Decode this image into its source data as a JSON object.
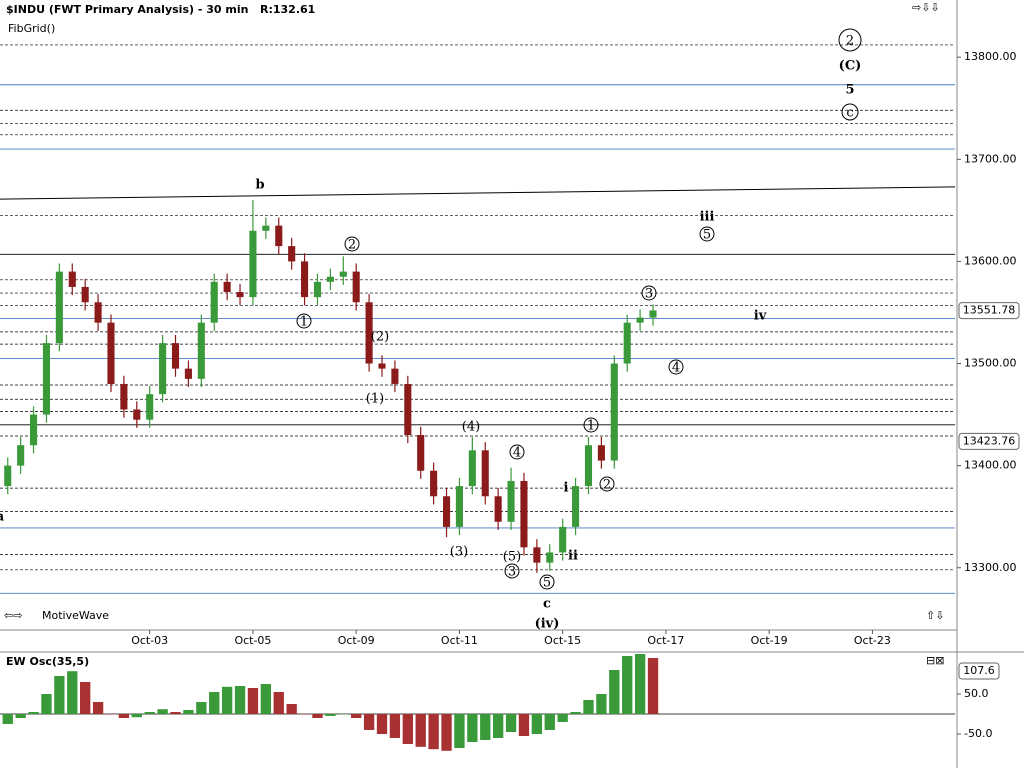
{
  "header": {
    "title": "$INDU (FWT Primary Analysis) - 30 min",
    "range": "R:132.61",
    "study": "FibGrid()",
    "watermark": "MotiveWave"
  },
  "chart_data": [
    {
      "type": "candlestick",
      "x": [
        -1.75,
        -1.5,
        -1.25,
        -1.0,
        -0.75,
        -0.5,
        -0.25,
        0,
        0.25,
        0.5,
        0.75,
        1.0,
        1.25,
        1.5,
        1.75,
        2.0,
        2.25,
        2.5,
        2.75,
        3.0,
        3.25,
        3.5,
        3.75,
        4.0,
        4.25,
        4.5,
        4.75,
        5.0,
        5.25,
        5.5,
        5.75,
        6.0,
        6.25,
        6.5,
        6.75,
        7.0,
        7.25,
        7.5,
        7.75,
        8.0,
        8.25,
        8.5,
        8.75,
        9.0,
        9.25,
        9.5,
        9.75,
        10.0,
        10.25,
        10.5,
        10.75
      ],
      "open": [
        13380,
        13400,
        13420,
        13450,
        13520,
        13590,
        13575,
        13560,
        13540,
        13480,
        13455,
        13445,
        13470,
        13520,
        13495,
        13485,
        13540,
        13580,
        13570,
        13565,
        13630,
        13635,
        13615,
        13600,
        13565,
        13580,
        13585,
        13590,
        13560,
        13500,
        13495,
        13480,
        13430,
        13395,
        13370,
        13340,
        13380,
        13415,
        13370,
        13345,
        13385,
        13320,
        13305,
        13315,
        13340,
        13380,
        13420,
        13405,
        13500,
        13540,
        13545
      ],
      "high": [
        13408,
        13428,
        13458,
        13528,
        13598,
        13598,
        13583,
        13568,
        13548,
        13488,
        13463,
        13478,
        13528,
        13528,
        13503,
        13548,
        13588,
        13588,
        13578,
        13660,
        13643,
        13643,
        13623,
        13608,
        13588,
        13593,
        13605,
        13598,
        13568,
        13508,
        13503,
        13488,
        13438,
        13403,
        13378,
        13388,
        13428,
        13423,
        13378,
        13398,
        13393,
        13328,
        13323,
        13348,
        13388,
        13428,
        13428,
        13508,
        13548,
        13553,
        13558
      ],
      "low": [
        13372,
        13392,
        13412,
        13442,
        13512,
        13567,
        13552,
        13532,
        13472,
        13447,
        13437,
        13437,
        13462,
        13487,
        13477,
        13477,
        13532,
        13562,
        13557,
        13557,
        13622,
        13607,
        13592,
        13557,
        13557,
        13572,
        13577,
        13552,
        13492,
        13487,
        13472,
        13422,
        13387,
        13362,
        13330,
        13332,
        13372,
        13362,
        13337,
        13337,
        13312,
        13295,
        13297,
        13307,
        13332,
        13372,
        13397,
        13397,
        13492,
        13532,
        13537
      ],
      "close": [
        13400,
        13420,
        13450,
        13520,
        13590,
        13575,
        13560,
        13540,
        13480,
        13455,
        13445,
        13470,
        13520,
        13495,
        13485,
        13540,
        13580,
        13570,
        13565,
        13630,
        13635,
        13615,
        13600,
        13565,
        13580,
        13585,
        13590,
        13560,
        13500,
        13495,
        13480,
        13430,
        13395,
        13370,
        13340,
        13380,
        13415,
        13370,
        13345,
        13385,
        13320,
        13305,
        13315,
        13340,
        13380,
        13420,
        13405,
        13500,
        13540,
        13545,
        13552
      ],
      "up_color": "#3a9a3a",
      "down_color": "#8b1a1a",
      "xlim": [
        -1.9,
        16.6
      ],
      "xticks": [
        {
          "value": 1,
          "label": "Oct-03"
        },
        {
          "value": 3,
          "label": "Oct-05"
        },
        {
          "value": 5,
          "label": "Oct-09"
        },
        {
          "value": 7,
          "label": "Oct-11"
        },
        {
          "value": 9,
          "label": "Oct-15"
        },
        {
          "value": 11,
          "label": "Oct-17"
        },
        {
          "value": 13,
          "label": "Oct-19"
        },
        {
          "value": 15,
          "label": "Oct-23"
        }
      ],
      "ylim": [
        13241,
        13856
      ],
      "yticks": [
        {
          "value": 13300,
          "label": "13300.00"
        },
        {
          "value": 13400,
          "label": "13400.00"
        },
        {
          "value": 13500,
          "label": "13500.00"
        },
        {
          "value": 13600,
          "label": "13600.00"
        },
        {
          "value": 13700,
          "label": "13700.00"
        },
        {
          "value": 13800,
          "label": "13800.00"
        }
      ],
      "price_badges": [
        {
          "value": 13551.78,
          "label": "13551.78"
        },
        {
          "value": 13423.76,
          "label": "13423.76"
        }
      ],
      "fib_levels": {
        "solid": [
          13607,
          13440
        ],
        "blue": [
          13773,
          13710,
          13544,
          13505,
          13339,
          13275
        ],
        "dashed": [
          13812,
          13748,
          13735,
          13724,
          13645,
          13582,
          13569,
          13557,
          13531,
          13519,
          13479,
          13465,
          13453,
          13429,
          13378,
          13355,
          13313,
          13298
        ]
      },
      "trendline": {
        "x": [
          -1.9,
          16.6
        ],
        "y": [
          13661,
          13673
        ]
      },
      "annotations": [
        "2",
        "(C)",
        "5",
        "c",
        "b",
        "iii",
        "5",
        "2",
        "3",
        "iv",
        "1",
        "(2)",
        "4",
        "(1)",
        "(4)",
        "1",
        "4",
        "2",
        "i",
        "a",
        "(3)",
        "(5)",
        "ii",
        "3",
        "5",
        "c",
        "(iv)"
      ]
    },
    {
      "type": "bar",
      "title": "EW Osc(35,5)",
      "x": [
        -1.75,
        -1.5,
        -1.25,
        -1.0,
        -0.75,
        -0.5,
        -0.25,
        0,
        0.25,
        0.5,
        0.75,
        1.0,
        1.25,
        1.5,
        1.75,
        2.0,
        2.25,
        2.5,
        2.75,
        3.0,
        3.25,
        3.5,
        3.75,
        4.0,
        4.25,
        4.5,
        4.75,
        5.0,
        5.25,
        5.5,
        5.75,
        6.0,
        6.25,
        6.5,
        6.75,
        7.0,
        7.25,
        7.5,
        7.75,
        8.0,
        8.25,
        8.5,
        8.75,
        9.0,
        9.25,
        9.5,
        9.75,
        10.0,
        10.25,
        10.5,
        10.75
      ],
      "values": [
        -25,
        -10,
        5,
        50,
        95,
        107,
        80,
        30,
        0,
        -10,
        -8,
        5,
        12,
        5,
        10,
        30,
        55,
        68,
        70,
        65,
        75,
        55,
        25,
        0,
        -10,
        -5,
        0,
        -10,
        -40,
        -50,
        -60,
        -75,
        -82,
        -88,
        -92,
        -85,
        -70,
        -65,
        -60,
        -45,
        -55,
        -50,
        -40,
        -20,
        5,
        35,
        50,
        110,
        145,
        150,
        140
      ],
      "up_color": "#3a9a3a",
      "down_color": "#a83232",
      "ylim": [
        -135,
        155
      ],
      "yticks": [
        {
          "value": 50,
          "label": "50.0"
        },
        {
          "value": -50,
          "label": "-50.0"
        }
      ],
      "value_badge": {
        "value": 107.6,
        "label": "107.6"
      }
    }
  ]
}
